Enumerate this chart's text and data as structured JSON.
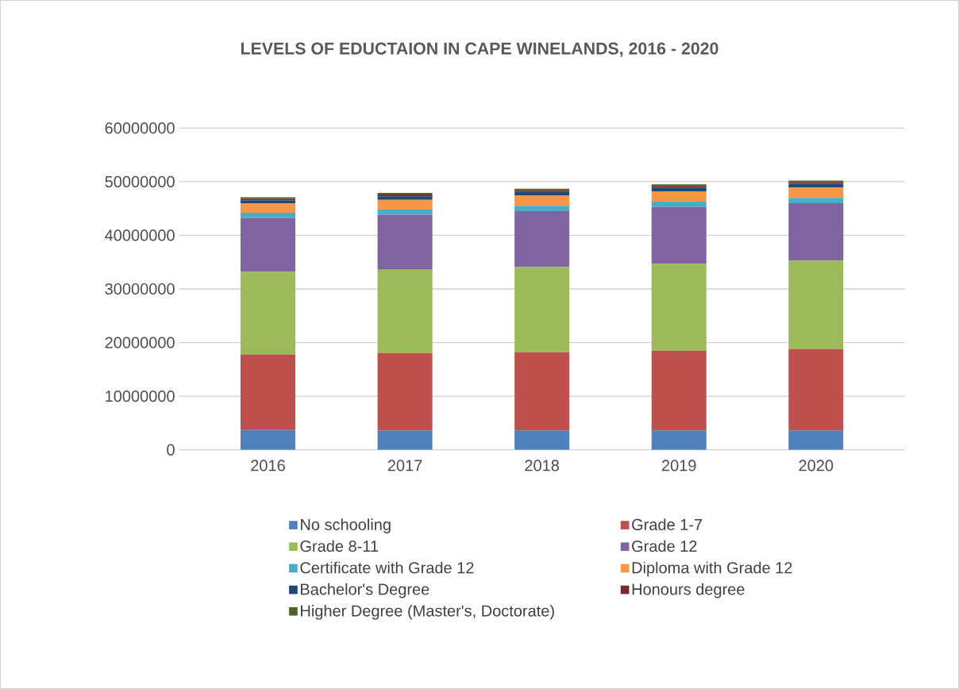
{
  "chart_data": {
    "type": "bar",
    "title": "LEVELS OF EDUCTAION IN CAPE WINELANDS, 2016 - 2020",
    "categories": [
      "2016",
      "2017",
      "2018",
      "2019",
      "2020"
    ],
    "stacked": true,
    "series": [
      {
        "name": "No schooling",
        "color": "#4f81bd",
        "values": [
          3700000,
          3600000,
          3600000,
          3600000,
          3600000
        ]
      },
      {
        "name": "Grade 1-7",
        "color": "#c0504d",
        "values": [
          14100000,
          14400000,
          14600000,
          14900000,
          15200000
        ]
      },
      {
        "name": "Grade 8-11",
        "color": "#9bbb59",
        "values": [
          15400000,
          15600000,
          15900000,
          16200000,
          16500000
        ]
      },
      {
        "name": "Grade 12",
        "color": "#8064a2",
        "values": [
          10000000,
          10200000,
          10400000,
          10600000,
          10700000
        ]
      },
      {
        "name": "Certificate with Grade 12",
        "color": "#4bacc6",
        "values": [
          1000000,
          1000000,
          1000000,
          1000000,
          1000000
        ]
      },
      {
        "name": "Diploma with Grade 12",
        "color": "#f79646",
        "values": [
          1800000,
          1800000,
          1900000,
          1900000,
          1900000
        ]
      },
      {
        "name": "Bachelor's Degree",
        "color": "#1f497d",
        "values": [
          500000,
          700000,
          700000,
          700000,
          700000
        ]
      },
      {
        "name": "Honours degree",
        "color": "#772c2a",
        "values": [
          300000,
          300000,
          300000,
          300000,
          300000
        ]
      },
      {
        "name": "Higher Degree (Master's, Doctorate)",
        "color": "#4f6228",
        "values": [
          300000,
          300000,
          300000,
          300000,
          300000
        ]
      }
    ],
    "ylim": [
      0,
      60000000
    ],
    "yticks": [
      0,
      10000000,
      20000000,
      30000000,
      40000000,
      50000000,
      60000000
    ],
    "grid": "y",
    "legend": "bottom"
  }
}
